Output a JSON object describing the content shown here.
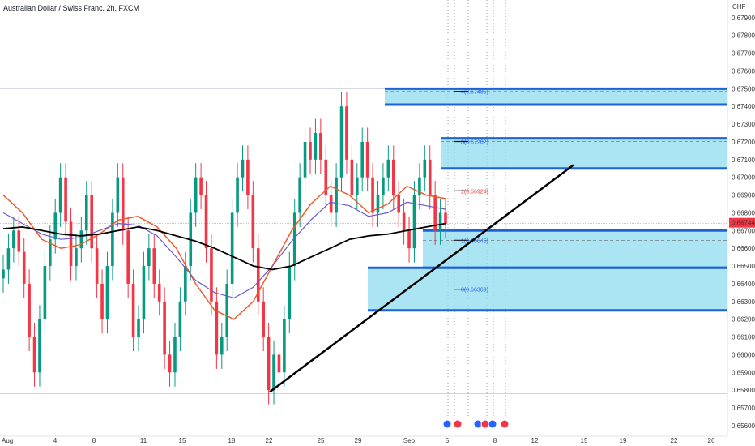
{
  "chart_data": {
    "type": "candlestick",
    "title": "Australian Dollar / Swiss Franc, 2h, FXCM",
    "currency": "CHF",
    "ylim": [
      0.6554,
      0.68
    ],
    "y_ticks": [
      "0.67900",
      "0.67800",
      "0.67700",
      "0.67600",
      "0.67500",
      "0.67400",
      "0.67300",
      "0.67200",
      "0.67100",
      "0.67000",
      "0.66900",
      "0.66800",
      "0.66700",
      "0.66600",
      "0.66500",
      "0.66400",
      "0.66300",
      "0.66200",
      "0.66100",
      "0.66000",
      "0.65900",
      "0.65800",
      "0.65700",
      "0.65600"
    ],
    "x_ticks": [
      "Aug",
      "4",
      "8",
      "11",
      "15",
      "18",
      "22",
      "25",
      "29",
      "Sep",
      "5",
      "8",
      "12",
      "15",
      "19",
      "22",
      "26"
    ],
    "last_price": "0.66744",
    "zones": [
      {
        "label": "4(0.67485)",
        "top": 0.675,
        "bottom": 0.6741,
        "label_y": 0.67485,
        "color": "#2962ff"
      },
      {
        "label": "3(0.67202)",
        "top": 0.6722,
        "bottom": 0.6705,
        "label_y": 0.67202,
        "color": "#2962ff"
      },
      {
        "label": "2(0.66924)",
        "label_y": 0.66924,
        "color": "#f23645"
      },
      {
        "label": "1(0.66645)",
        "top": 0.667,
        "bottom": 0.6649,
        "label_y": 0.66645,
        "color": "#2962ff"
      },
      {
        "label": "0(0.66369)",
        "top": 0.6649,
        "bottom": 0.6625,
        "label_y": 0.66369,
        "color": "#2962ff"
      }
    ],
    "trendline": {
      "from": {
        "date_index": 22,
        "price": 0.6579
      },
      "to": {
        "date_index": 49,
        "price": 0.6707
      }
    },
    "close_series": [
      0.6648,
      0.666,
      0.667,
      0.6658,
      0.664,
      0.661,
      0.659,
      0.662,
      0.665,
      0.6665,
      0.668,
      0.67,
      0.6675,
      0.665,
      0.666,
      0.667,
      0.669,
      0.666,
      0.664,
      0.662,
      0.665,
      0.668,
      0.67,
      0.667,
      0.664,
      0.661,
      0.662,
      0.665,
      0.666,
      0.664,
      0.663,
      0.66,
      0.659,
      0.661,
      0.663,
      0.665,
      0.668,
      0.67,
      0.669,
      0.666,
      0.663,
      0.66,
      0.661,
      0.664,
      0.668,
      0.67,
      0.671,
      0.669,
      0.666,
      0.663,
      0.661,
      0.658,
      0.66,
      0.659,
      0.662,
      0.665,
      0.668,
      0.67,
      0.672,
      0.671,
      0.6725,
      0.671,
      0.669,
      0.668,
      0.67,
      0.674,
      0.671,
      0.669,
      0.67,
      0.672,
      0.67,
      0.668,
      0.669,
      0.67,
      0.671,
      0.669,
      0.668,
      0.667,
      0.666,
      0.669,
      0.67,
      0.671,
      0.669,
      0.667,
      0.668,
      0.6674
    ],
    "ma_black": [
      0.6671,
      0.6672,
      0.667,
      0.6668,
      0.6667,
      0.6668,
      0.667,
      0.6672,
      0.667,
      0.6667,
      0.6664,
      0.666,
      0.6655,
      0.665,
      0.6648,
      0.665,
      0.6655,
      0.666,
      0.6665,
      0.6667,
      0.6668,
      0.667,
      0.6672,
      0.6674
    ],
    "ma_orange": [
      0.669,
      0.668,
      0.6665,
      0.666,
      0.6662,
      0.6668,
      0.6676,
      0.6678,
      0.6672,
      0.666,
      0.664,
      0.6625,
      0.662,
      0.663,
      0.665,
      0.667,
      0.6685,
      0.6695,
      0.669,
      0.668,
      0.6685,
      0.6695,
      0.669,
      0.6688
    ],
    "ma_purple": [
      0.668,
      0.6674,
      0.6668,
      0.6665,
      0.6666,
      0.667,
      0.6674,
      0.6673,
      0.6667,
      0.6655,
      0.6642,
      0.6635,
      0.6632,
      0.6638,
      0.665,
      0.6664,
      0.6676,
      0.6686,
      0.6684,
      0.6678,
      0.668,
      0.6686,
      0.6684,
      0.6682
    ]
  }
}
